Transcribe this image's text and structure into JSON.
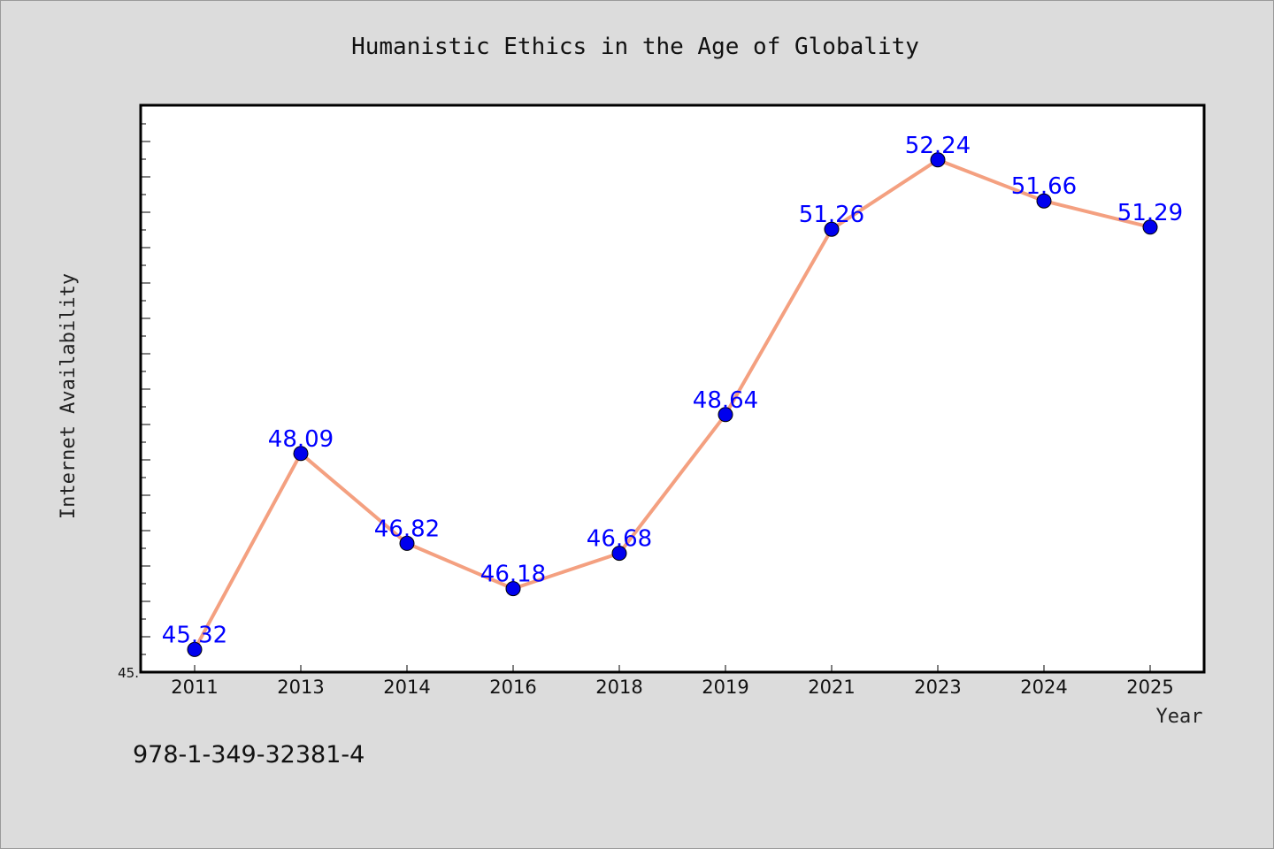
{
  "chart_data": {
    "type": "line",
    "title": "Humanistic Ethics in the Age of Globality",
    "xlabel": "Year",
    "ylabel": "Internet Availability",
    "categories": [
      "2011",
      "2013",
      "2014",
      "2016",
      "2018",
      "2019",
      "2021",
      "2023",
      "2024",
      "2025"
    ],
    "series": [
      {
        "values": [
          45.32,
          48.09,
          46.82,
          46.18,
          46.68,
          48.64,
          51.26,
          52.24,
          51.66,
          51.29
        ],
        "labels": [
          "45.32",
          "48.09",
          "46.82",
          "46.18",
          "46.68",
          "48.64",
          "51.26",
          "52.24",
          "51.66",
          "51.29"
        ]
      }
    ],
    "ylim": [
      45.0,
      53.0
    ],
    "ytick_labels": [
      {
        "value": 45.0,
        "label": "45."
      }
    ],
    "grid": false,
    "line_color": "#f4a080",
    "marker_color": "#0000ee",
    "label_color": "#0000ff"
  },
  "footer": {
    "isbn": "978-1-349-32381-4"
  }
}
